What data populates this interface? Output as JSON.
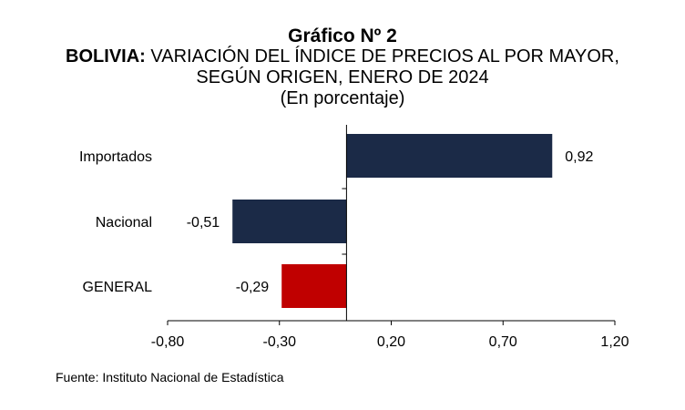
{
  "title": {
    "line1": "Gráfico Nº 2",
    "line2_bold": "BOLIVIA:",
    "line2_rest": " VARIACIÓN DEL ÍNDICE DE PRECIOS AL POR MAYOR,",
    "line3": "SEGÚN ORIGEN, ENERO DE 2024",
    "line4": "(En porcentaje)"
  },
  "source": "Fuente: Instituto Nacional de Estadística",
  "chart_data": {
    "type": "bar",
    "orientation": "horizontal",
    "categories": [
      "Importados",
      "Nacional",
      "GENERAL"
    ],
    "values": [
      0.92,
      -0.51,
      -0.29
    ],
    "value_labels": [
      "0,92",
      "-0,51",
      "-0,29"
    ],
    "bar_colors": [
      "#1b2a47",
      "#1b2a47",
      "#c00000"
    ],
    "xlim": [
      -0.8,
      1.2
    ],
    "xticks": [
      -0.8,
      -0.3,
      0.2,
      0.7,
      1.2
    ],
    "xtick_labels": [
      "-0,80",
      "-0,30",
      "0,20",
      "0,70",
      "1,20"
    ],
    "grid": false,
    "legend": "none"
  }
}
